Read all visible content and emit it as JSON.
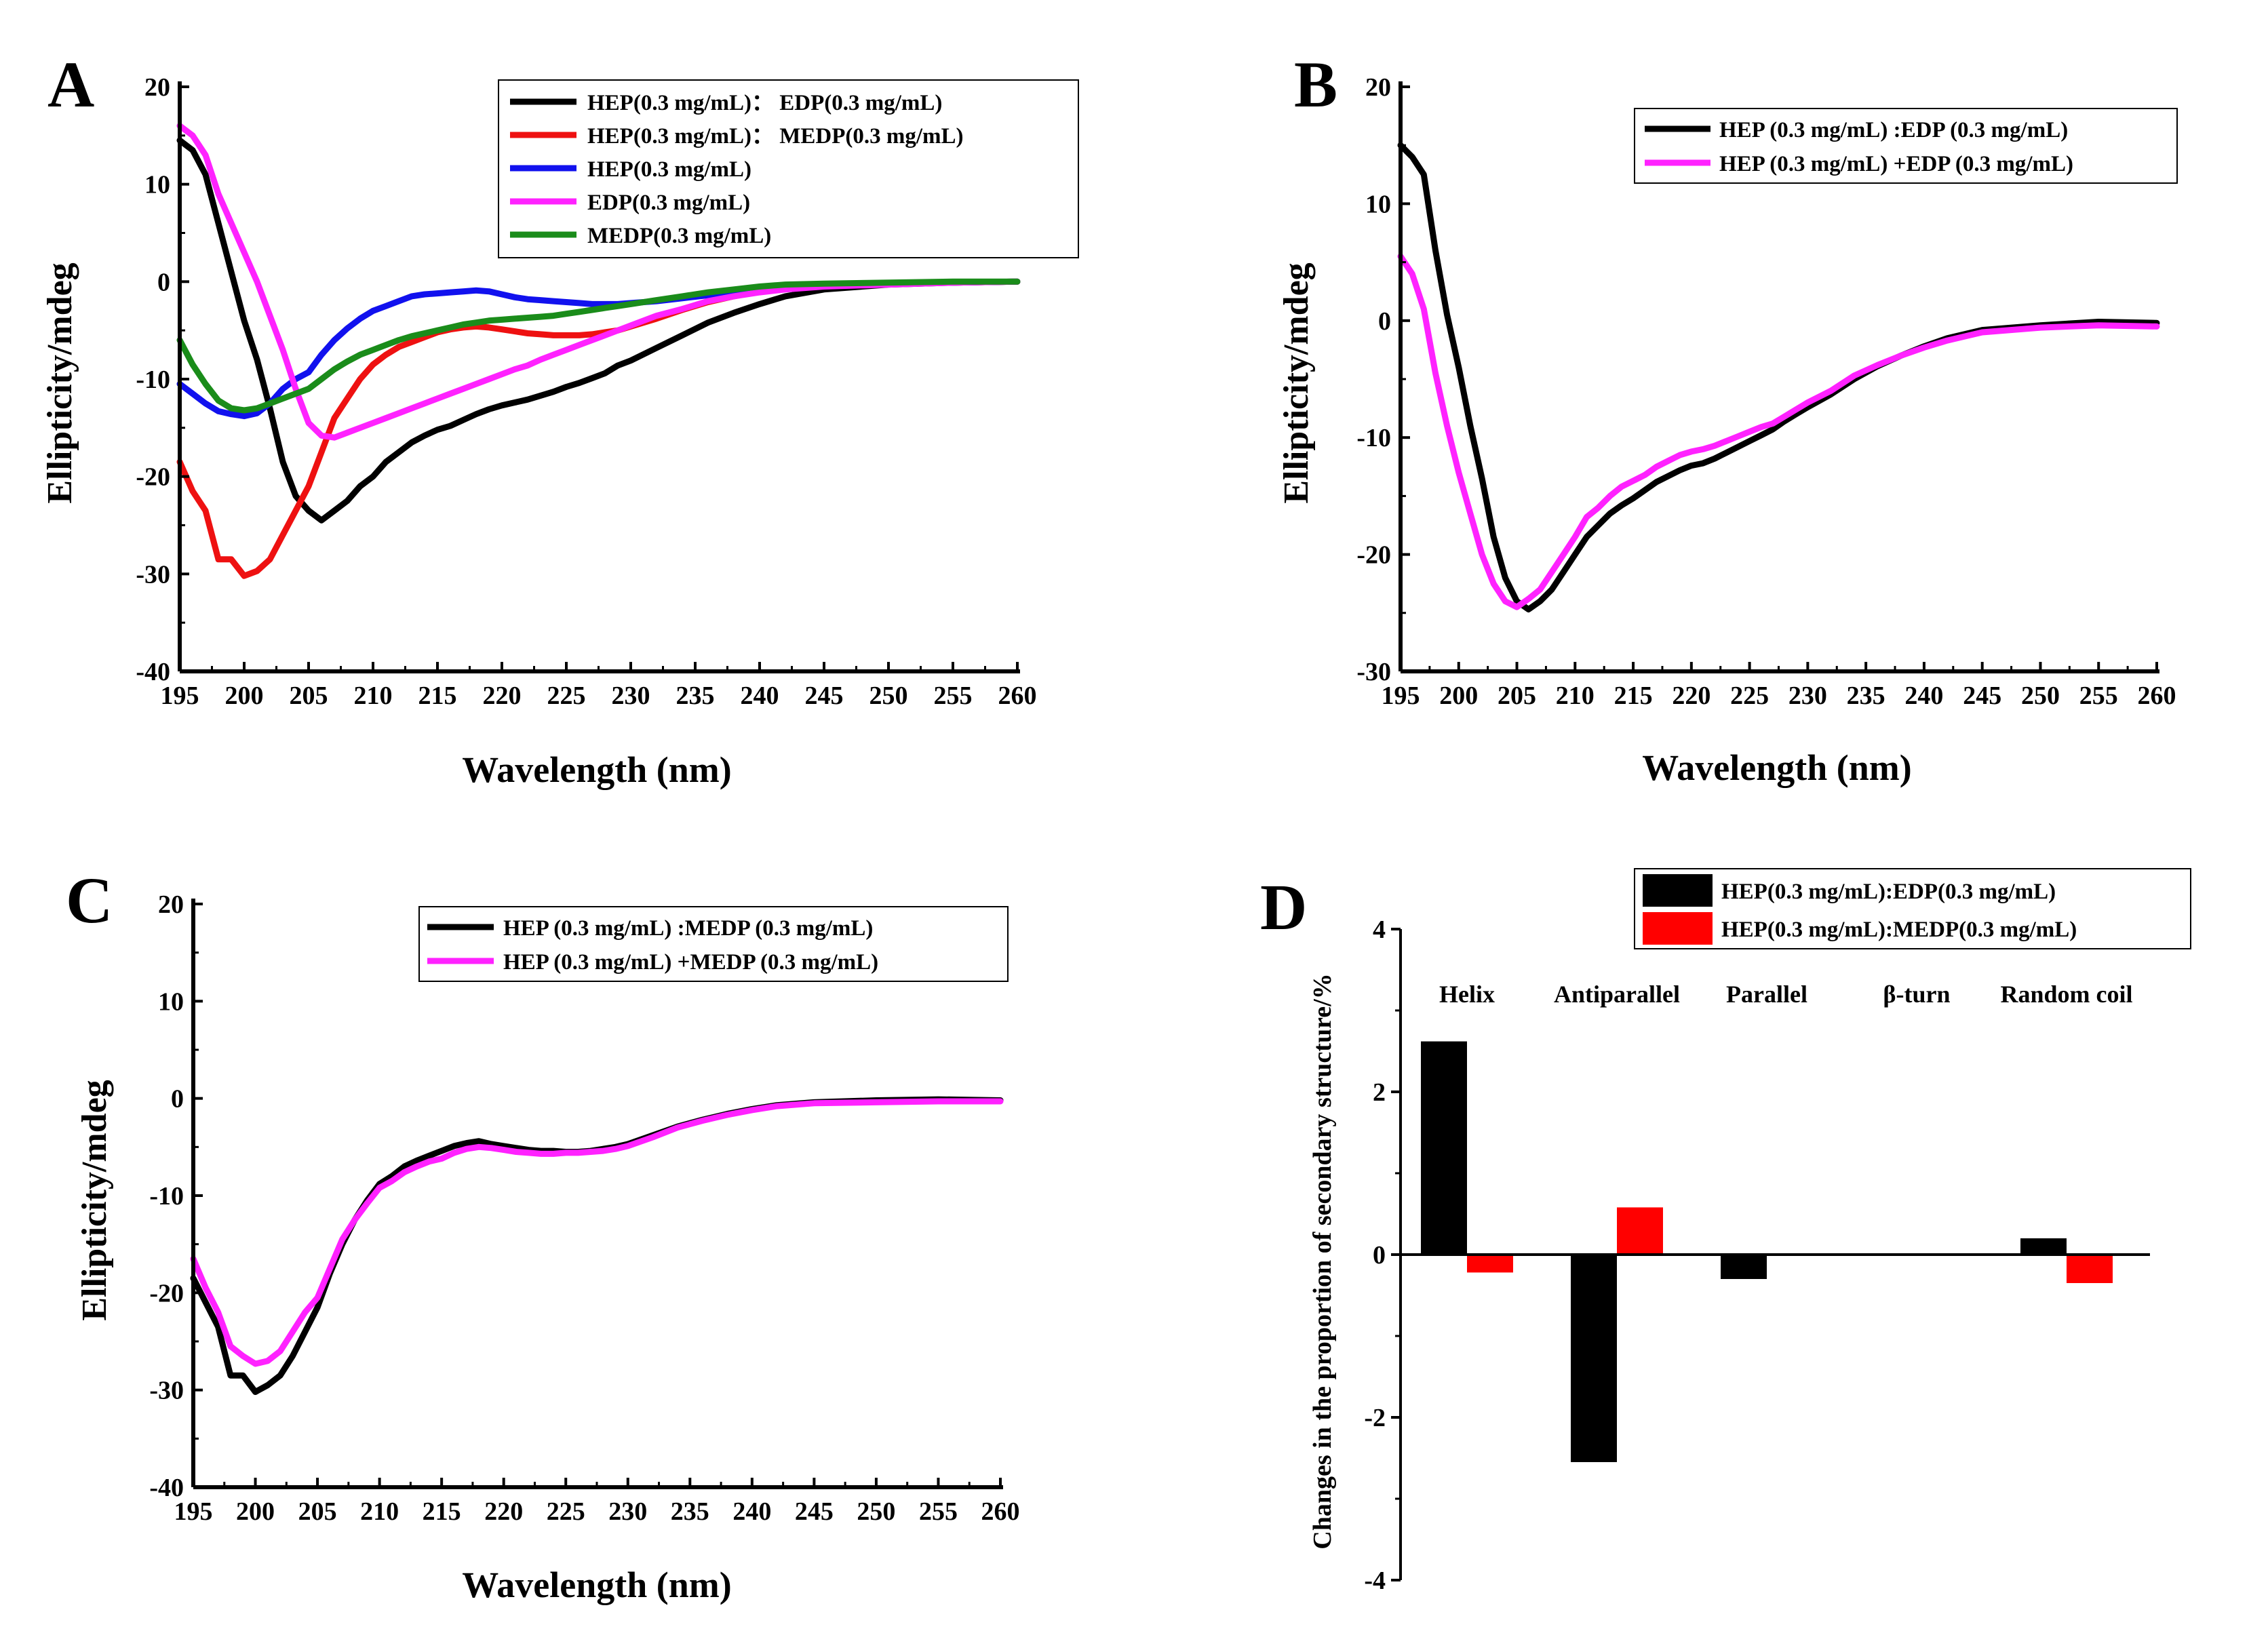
{
  "chart_data": [
    {
      "panel": "A",
      "type": "line",
      "xlabel": "Wavelength (nm)",
      "ylabel": "Ellipticity/mdeg",
      "xlim": [
        195,
        260
      ],
      "ylim": [
        -40,
        20
      ],
      "xticks": [
        195,
        200,
        205,
        210,
        215,
        220,
        225,
        230,
        235,
        240,
        245,
        250,
        255,
        260
      ],
      "yticks": [
        -40,
        -30,
        -20,
        -10,
        0,
        10,
        20
      ],
      "legend_position": "top-right",
      "series": [
        {
          "name": "HEP(0.3 mg/mL)： EDP(0.3 mg/mL)",
          "color": "#000000",
          "x": [
            195,
            196,
            197,
            198,
            199,
            200,
            201,
            202,
            203,
            204,
            205,
            206,
            207,
            208,
            209,
            210,
            211,
            212,
            213,
            214,
            215,
            216,
            217,
            218,
            219,
            220,
            221,
            222,
            223,
            224,
            225,
            226,
            227,
            228,
            229,
            230,
            232,
            234,
            236,
            238,
            240,
            242,
            245,
            250,
            255,
            260
          ],
          "y": [
            14.5,
            13.5,
            11,
            6,
            1,
            -4,
            -8,
            -13,
            -18.5,
            -22,
            -23.5,
            -24.5,
            -23.5,
            -22.5,
            -21,
            -20,
            -18.5,
            -17.5,
            -16.5,
            -15.8,
            -15.2,
            -14.8,
            -14.2,
            -13.6,
            -13.1,
            -12.7,
            -12.4,
            -12.1,
            -11.7,
            -11.3,
            -10.8,
            -10.4,
            -9.9,
            -9.4,
            -8.6,
            -8.1,
            -6.8,
            -5.5,
            -4.2,
            -3.2,
            -2.3,
            -1.5,
            -0.8,
            -0.3,
            -0.1,
            0
          ]
        },
        {
          "name": "HEP(0.3 mg/mL)： MEDP(0.3 mg/mL)",
          "color": "#ee1111",
          "x": [
            195,
            196,
            197,
            198,
            199,
            200,
            201,
            202,
            203,
            204,
            205,
            206,
            207,
            208,
            209,
            210,
            211,
            212,
            213,
            214,
            215,
            216,
            217,
            218,
            219,
            220,
            221,
            222,
            223,
            224,
            225,
            226,
            227,
            228,
            229,
            230,
            232,
            234,
            236,
            238,
            240,
            242,
            245,
            250,
            255,
            260
          ],
          "y": [
            -18.5,
            -21.5,
            -23.5,
            -28.5,
            -28.5,
            -30.2,
            -29.7,
            -28.5,
            -26,
            -23.5,
            -21,
            -17.5,
            -14,
            -12,
            -10,
            -8.5,
            -7.5,
            -6.7,
            -6.2,
            -5.7,
            -5.2,
            -4.9,
            -4.7,
            -4.6,
            -4.7,
            -4.9,
            -5.1,
            -5.3,
            -5.4,
            -5.5,
            -5.5,
            -5.5,
            -5.4,
            -5.2,
            -5,
            -4.6,
            -3.8,
            -2.9,
            -2.1,
            -1.5,
            -1,
            -0.6,
            -0.3,
            -0.2,
            -0.1,
            0
          ]
        },
        {
          "name": "HEP(0.3 mg/mL)",
          "color": "#1111ee",
          "x": [
            195,
            196,
            197,
            198,
            199,
            200,
            201,
            202,
            203,
            204,
            205,
            206,
            207,
            208,
            209,
            210,
            211,
            212,
            213,
            214,
            215,
            216,
            217,
            218,
            219,
            220,
            221,
            222,
            223,
            224,
            225,
            226,
            227,
            228,
            229,
            230,
            232,
            234,
            236,
            238,
            240,
            242,
            245,
            250,
            255,
            260
          ],
          "y": [
            -10.5,
            -11.5,
            -12.5,
            -13.3,
            -13.6,
            -13.8,
            -13.5,
            -12.5,
            -11,
            -10,
            -9.3,
            -7.5,
            -6,
            -4.8,
            -3.8,
            -3,
            -2.5,
            -2,
            -1.5,
            -1.3,
            -1.2,
            -1.1,
            -1,
            -0.9,
            -1,
            -1.3,
            -1.6,
            -1.8,
            -1.9,
            -2,
            -2.1,
            -2.2,
            -2.3,
            -2.3,
            -2.3,
            -2.2,
            -2,
            -1.7,
            -1.4,
            -1.1,
            -0.8,
            -0.6,
            -0.4,
            -0.2,
            -0.1,
            0
          ]
        },
        {
          "name": "EDP(0.3 mg/mL)",
          "color": "#ff22ff",
          "x": [
            195,
            196,
            197,
            198,
            199,
            200,
            201,
            202,
            203,
            204,
            205,
            206,
            207,
            208,
            209,
            210,
            211,
            212,
            213,
            214,
            215,
            216,
            217,
            218,
            219,
            220,
            221,
            222,
            223,
            224,
            225,
            226,
            227,
            228,
            229,
            230,
            232,
            234,
            236,
            238,
            240,
            242,
            245,
            250,
            255,
            260
          ],
          "y": [
            16,
            15,
            13,
            9,
            6,
            3,
            0,
            -3.5,
            -7,
            -11,
            -14.5,
            -15.8,
            -16,
            -15.5,
            -15,
            -14.5,
            -14,
            -13.5,
            -13,
            -12.5,
            -12,
            -11.5,
            -11,
            -10.5,
            -10,
            -9.5,
            -9,
            -8.6,
            -8,
            -7.5,
            -7,
            -6.5,
            -6,
            -5.5,
            -5,
            -4.5,
            -3.5,
            -2.8,
            -2,
            -1.5,
            -1.1,
            -0.8,
            -0.5,
            -0.3,
            -0.1,
            0
          ]
        },
        {
          "name": "MEDP(0.3 mg/mL)",
          "color": "#1a8c1a",
          "x": [
            195,
            196,
            197,
            198,
            199,
            200,
            201,
            202,
            203,
            204,
            205,
            206,
            207,
            208,
            209,
            210,
            211,
            212,
            213,
            214,
            215,
            216,
            217,
            218,
            219,
            220,
            221,
            222,
            223,
            224,
            225,
            226,
            227,
            228,
            229,
            230,
            232,
            234,
            236,
            238,
            240,
            242,
            245,
            250,
            255,
            260
          ],
          "y": [
            -6,
            -8.5,
            -10.5,
            -12.2,
            -13,
            -13.2,
            -13,
            -12.5,
            -12,
            -11.5,
            -11,
            -10,
            -9,
            -8.2,
            -7.5,
            -7,
            -6.5,
            -6,
            -5.6,
            -5.3,
            -5,
            -4.7,
            -4.4,
            -4.2,
            -4,
            -3.9,
            -3.8,
            -3.7,
            -3.6,
            -3.5,
            -3.3,
            -3.1,
            -2.9,
            -2.7,
            -2.5,
            -2.3,
            -1.9,
            -1.5,
            -1.1,
            -0.8,
            -0.5,
            -0.3,
            -0.2,
            -0.1,
            0,
            0
          ]
        }
      ]
    },
    {
      "panel": "B",
      "type": "line",
      "xlabel": "Wavelength (nm)",
      "ylabel": "Ellipticity/mdeg",
      "xlim": [
        195,
        260
      ],
      "ylim": [
        -30,
        20
      ],
      "xticks": [
        195,
        200,
        205,
        210,
        215,
        220,
        225,
        230,
        235,
        240,
        245,
        250,
        255,
        260
      ],
      "yticks": [
        -30,
        -20,
        -10,
        0,
        10,
        20
      ],
      "legend_position": "top-right",
      "series": [
        {
          "name": "HEP (0.3 mg/mL) :EDP (0.3 mg/mL)",
          "color": "#000000",
          "x": [
            195,
            196,
            197,
            198,
            199,
            200,
            201,
            202,
            203,
            204,
            205,
            206,
            207,
            208,
            209,
            210,
            211,
            212,
            213,
            214,
            215,
            216,
            217,
            218,
            219,
            220,
            221,
            222,
            223,
            224,
            225,
            226,
            227,
            228,
            229,
            230,
            232,
            234,
            236,
            238,
            240,
            242,
            245,
            250,
            255,
            260
          ],
          "y": [
            15,
            14,
            12.5,
            6,
            0.5,
            -4,
            -9,
            -13.5,
            -18.5,
            -22,
            -24,
            -24.7,
            -24,
            -23,
            -21.5,
            -20,
            -18.5,
            -17.5,
            -16.5,
            -15.8,
            -15.2,
            -14.5,
            -13.8,
            -13.3,
            -12.8,
            -12.4,
            -12.2,
            -11.8,
            -11.3,
            -10.8,
            -10.3,
            -9.8,
            -9.3,
            -8.6,
            -8,
            -7.4,
            -6.3,
            -5,
            -3.9,
            -3,
            -2.2,
            -1.5,
            -0.8,
            -0.4,
            -0.1,
            -0.2
          ]
        },
        {
          "name": "HEP (0.3 mg/mL) +EDP (0.3 mg/mL)",
          "color": "#ff22ff",
          "x": [
            195,
            196,
            197,
            198,
            199,
            200,
            201,
            202,
            203,
            204,
            205,
            206,
            207,
            208,
            209,
            210,
            211,
            212,
            213,
            214,
            215,
            216,
            217,
            218,
            219,
            220,
            221,
            222,
            223,
            224,
            225,
            226,
            227,
            228,
            229,
            230,
            232,
            234,
            236,
            238,
            240,
            242,
            245,
            250,
            255,
            260
          ],
          "y": [
            5.5,
            4,
            1,
            -4.5,
            -9,
            -13,
            -16.5,
            -20,
            -22.5,
            -24,
            -24.5,
            -23.8,
            -23,
            -21.5,
            -20,
            -18.5,
            -16.8,
            -16,
            -15,
            -14.2,
            -13.7,
            -13.2,
            -12.5,
            -12,
            -11.5,
            -11.2,
            -11,
            -10.7,
            -10.3,
            -9.9,
            -9.5,
            -9.1,
            -8.8,
            -8.2,
            -7.6,
            -7,
            -6,
            -4.7,
            -3.8,
            -3,
            -2.3,
            -1.7,
            -1,
            -0.6,
            -0.4,
            -0.5
          ]
        }
      ]
    },
    {
      "panel": "C",
      "type": "line",
      "xlabel": "Wavelength (nm)",
      "ylabel": "Ellipticity/mdeg",
      "xlim": [
        195,
        260
      ],
      "ylim": [
        -40,
        20
      ],
      "xticks": [
        195,
        200,
        205,
        210,
        215,
        220,
        225,
        230,
        235,
        240,
        245,
        250,
        255,
        260
      ],
      "yticks": [
        -40,
        -30,
        -20,
        -10,
        0,
        10,
        20
      ],
      "legend_position": "top-right",
      "series": [
        {
          "name": "HEP (0.3 mg/mL) :MEDP (0.3 mg/mL)",
          "color": "#000000",
          "x": [
            195,
            196,
            197,
            198,
            199,
            200,
            201,
            202,
            203,
            204,
            205,
            206,
            207,
            208,
            209,
            210,
            211,
            212,
            213,
            214,
            215,
            216,
            217,
            218,
            219,
            220,
            221,
            222,
            223,
            224,
            225,
            226,
            227,
            228,
            229,
            230,
            232,
            234,
            236,
            238,
            240,
            242,
            245,
            250,
            255,
            260
          ],
          "y": [
            -18.5,
            -21,
            -23.5,
            -28.5,
            -28.5,
            -30.2,
            -29.5,
            -28.5,
            -26.5,
            -24,
            -21.5,
            -18,
            -15,
            -12.5,
            -10.5,
            -8.8,
            -8,
            -7,
            -6.4,
            -5.9,
            -5.4,
            -4.9,
            -4.6,
            -4.4,
            -4.7,
            -4.9,
            -5.1,
            -5.3,
            -5.4,
            -5.4,
            -5.5,
            -5.5,
            -5.4,
            -5.2,
            -5,
            -4.7,
            -3.8,
            -2.9,
            -2.2,
            -1.6,
            -1.1,
            -0.7,
            -0.4,
            -0.2,
            -0.1,
            -0.2
          ]
        },
        {
          "name": "HEP (0.3 mg/mL) +MEDP (0.3 mg/mL)",
          "color": "#ff22ff",
          "x": [
            195,
            196,
            197,
            198,
            199,
            200,
            201,
            202,
            203,
            204,
            205,
            206,
            207,
            208,
            209,
            210,
            211,
            212,
            213,
            214,
            215,
            216,
            217,
            218,
            219,
            220,
            221,
            222,
            223,
            224,
            225,
            226,
            227,
            228,
            229,
            230,
            232,
            234,
            236,
            238,
            240,
            242,
            245,
            250,
            255,
            260
          ],
          "y": [
            -16.5,
            -19.5,
            -22,
            -25.5,
            -26.5,
            -27.3,
            -27,
            -26,
            -24,
            -22,
            -20.5,
            -17.5,
            -14.5,
            -12.5,
            -10.8,
            -9.2,
            -8.5,
            -7.6,
            -7,
            -6.5,
            -6.2,
            -5.6,
            -5.2,
            -5,
            -5.1,
            -5.3,
            -5.5,
            -5.6,
            -5.7,
            -5.7,
            -5.6,
            -5.6,
            -5.5,
            -5.4,
            -5.2,
            -4.9,
            -4,
            -3,
            -2.3,
            -1.7,
            -1.2,
            -0.8,
            -0.5,
            -0.4,
            -0.3,
            -0.3
          ]
        }
      ]
    },
    {
      "panel": "D",
      "type": "bar",
      "ylabel": "Changes in the proportion of secondary structure/%",
      "ylim": [
        -4,
        4
      ],
      "yticks": [
        -4,
        -2,
        0,
        2,
        4
      ],
      "categories": [
        "Helix",
        "Antiparallel",
        "Parallel",
        "β-turn",
        "Random coil"
      ],
      "legend_position": "top-right",
      "series": [
        {
          "name": "HEP(0.3 mg/mL):EDP(0.3 mg/mL)",
          "color": "#000000",
          "values": [
            2.62,
            -2.55,
            -0.3,
            0,
            0.2
          ]
        },
        {
          "name": "HEP(0.3 mg/mL):MEDP(0.3 mg/mL)",
          "color": "#ff0000",
          "values": [
            -0.22,
            0.58,
            0,
            0,
            -0.35
          ]
        }
      ]
    }
  ]
}
